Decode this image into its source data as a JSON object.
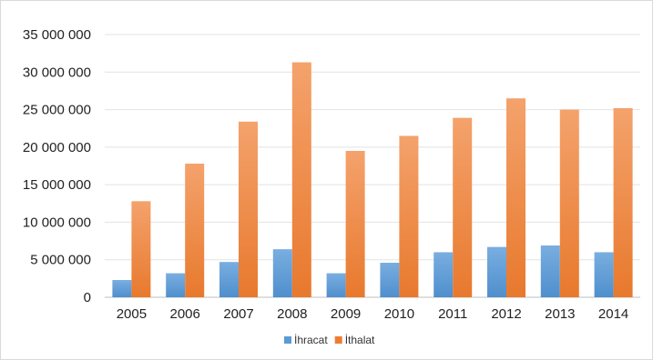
{
  "chart_data": {
    "type": "bar",
    "categories": [
      "2005",
      "2006",
      "2007",
      "2008",
      "2009",
      "2010",
      "2011",
      "2012",
      "2013",
      "2014"
    ],
    "series": [
      {
        "name": "İhracat",
        "color": "#5b9bd5",
        "values": [
          2300000,
          3200000,
          4700000,
          6400000,
          3200000,
          4600000,
          6000000,
          6700000,
          6900000,
          6000000
        ]
      },
      {
        "name": "İthalat",
        "color": "#ed7d31",
        "values": [
          12800000,
          17800000,
          23400000,
          31300000,
          19500000,
          21500000,
          23900000,
          26500000,
          25000000,
          25200000
        ]
      }
    ],
    "ylim": [
      0,
      35000000
    ],
    "yticks": [
      0,
      5000000,
      10000000,
      15000000,
      20000000,
      25000000,
      30000000,
      35000000
    ],
    "ytick_labels": [
      "0",
      "5 000 000",
      "10 000 000",
      "15 000 000",
      "20 000 000",
      "25 000 000",
      "30 000 000",
      "35 000 000"
    ],
    "grid": true,
    "legend_position": "bottom",
    "title": "",
    "xlabel": "",
    "ylabel": ""
  }
}
